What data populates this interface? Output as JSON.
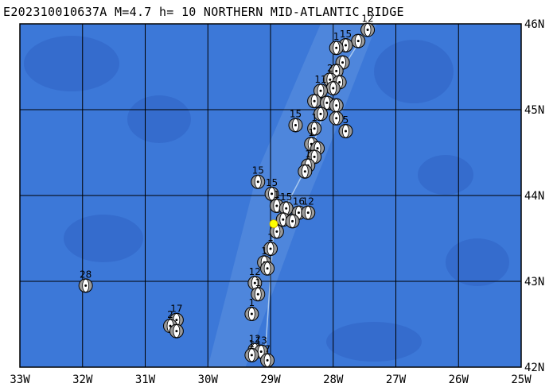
{
  "title": "E202310010637A M=4.7 h= 10 NORTHERN MID-ATLANTIC RIDGE",
  "map": {
    "lon_range": [
      -33,
      -25
    ],
    "lat_range": [
      42,
      46
    ],
    "grid": true,
    "colors": {
      "ocean": "#3c78d8",
      "ocean_deep": "#2f63c4",
      "ridge": "#5a8fe0",
      "grid": "#000000",
      "main_event": "#ffff00"
    },
    "lon_labels": [
      "33W",
      "32W",
      "31W",
      "30W",
      "29W",
      "28W",
      "27W",
      "26W",
      "25W"
    ],
    "lat_labels": [
      "46N",
      "45N",
      "44N",
      "43N",
      "42N"
    ]
  },
  "main_event": {
    "lon": -28.95,
    "lat": 43.67
  },
  "events": [
    {
      "lon": -27.45,
      "lat": 45.93,
      "label": "12"
    },
    {
      "lon": -27.6,
      "lat": 45.8,
      "label": ""
    },
    {
      "lon": -27.8,
      "lat": 45.75,
      "label": "15"
    },
    {
      "lon": -27.95,
      "lat": 45.72,
      "label": "1"
    },
    {
      "lon": -27.85,
      "lat": 45.55,
      "label": ""
    },
    {
      "lon": -27.95,
      "lat": 45.45,
      "label": ""
    },
    {
      "lon": -28.05,
      "lat": 45.35,
      "label": "2"
    },
    {
      "lon": -27.9,
      "lat": 45.32,
      "label": ""
    },
    {
      "lon": -28.0,
      "lat": 45.25,
      "label": ""
    },
    {
      "lon": -28.2,
      "lat": 45.22,
      "label": "11"
    },
    {
      "lon": -28.3,
      "lat": 45.1,
      "label": ""
    },
    {
      "lon": -28.1,
      "lat": 45.08,
      "label": ""
    },
    {
      "lon": -27.95,
      "lat": 45.05,
      "label": ""
    },
    {
      "lon": -28.2,
      "lat": 44.95,
      "label": ""
    },
    {
      "lon": -27.95,
      "lat": 44.9,
      "label": ""
    },
    {
      "lon": -28.6,
      "lat": 44.82,
      "label": "15"
    },
    {
      "lon": -28.3,
      "lat": 44.78,
      "label": "1"
    },
    {
      "lon": -27.8,
      "lat": 44.75,
      "label": "5"
    },
    {
      "lon": -28.35,
      "lat": 44.6,
      "label": "1"
    },
    {
      "lon": -28.25,
      "lat": 44.55,
      "label": ""
    },
    {
      "lon": -28.3,
      "lat": 44.45,
      "label": ""
    },
    {
      "lon": -28.4,
      "lat": 44.35,
      "label": "1"
    },
    {
      "lon": -28.45,
      "lat": 44.28,
      "label": ""
    },
    {
      "lon": -29.2,
      "lat": 44.16,
      "label": "15"
    },
    {
      "lon": -28.98,
      "lat": 44.02,
      "label": "15"
    },
    {
      "lon": -28.9,
      "lat": 43.88,
      "label": "1"
    },
    {
      "lon": -28.75,
      "lat": 43.85,
      "label": "15"
    },
    {
      "lon": -28.55,
      "lat": 43.8,
      "label": "16"
    },
    {
      "lon": -28.4,
      "lat": 43.8,
      "label": "12"
    },
    {
      "lon": -28.8,
      "lat": 43.72,
      "label": ""
    },
    {
      "lon": -28.65,
      "lat": 43.7,
      "label": ""
    },
    {
      "lon": -28.9,
      "lat": 43.58,
      "label": ""
    },
    {
      "lon": -29.0,
      "lat": 43.38,
      "label": "1"
    },
    {
      "lon": -29.1,
      "lat": 43.22,
      "label": "1"
    },
    {
      "lon": -29.05,
      "lat": 43.15,
      "label": ""
    },
    {
      "lon": -29.25,
      "lat": 42.98,
      "label": "12"
    },
    {
      "lon": -29.2,
      "lat": 42.85,
      "label": "1"
    },
    {
      "lon": -29.3,
      "lat": 42.62,
      "label": "1"
    },
    {
      "lon": -31.95,
      "lat": 42.95,
      "label": "28"
    },
    {
      "lon": -30.5,
      "lat": 42.55,
      "label": "17"
    },
    {
      "lon": -30.6,
      "lat": 42.48,
      "label": "2"
    },
    {
      "lon": -30.5,
      "lat": 42.42,
      "label": ""
    },
    {
      "lon": -29.25,
      "lat": 42.2,
      "label": "12"
    },
    {
      "lon": -29.15,
      "lat": 42.18,
      "label": "13"
    },
    {
      "lon": -29.3,
      "lat": 42.14,
      "label": "1"
    },
    {
      "lon": -29.05,
      "lat": 42.08,
      "label": "7"
    }
  ]
}
